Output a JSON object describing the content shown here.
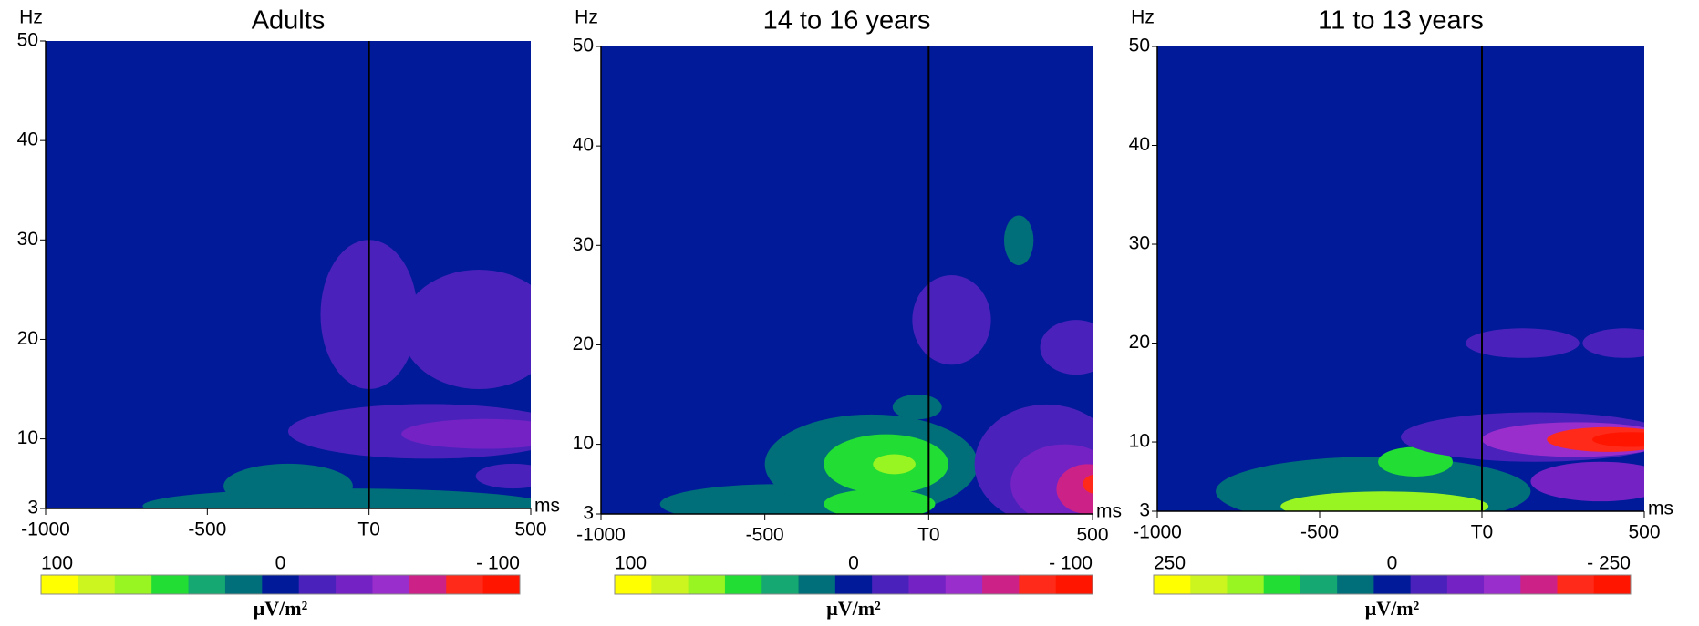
{
  "chart_data": [
    {
      "type": "contour",
      "title": "Adults",
      "y_label": "Hz",
      "x_label": "ms",
      "xlim": [
        -1000,
        500
      ],
      "xticks": [
        -1000,
        -500,
        {
          "value": 0,
          "label": "T0"
        },
        500
      ],
      "ylim": [
        3,
        50
      ],
      "yticks": [
        3,
        10,
        20,
        30,
        40,
        50
      ],
      "colorbar": {
        "label": "μV/m²",
        "ticks": [
          100,
          0,
          {
            "value": -100,
            "label": "- 100"
          }
        ],
        "colors": [
          "#ffff00",
          "#ccf520",
          "#99f522",
          "#22dd33",
          "#16a872",
          "#006f7a",
          "#001a99",
          "#4a22bb",
          "#7422c4",
          "#9a2ecc",
          "#cc2288",
          "#ff2a1a",
          "#ff1500"
        ]
      },
      "regions": [
        {
          "value": 20,
          "t": [
            -700,
            560
          ],
          "f": [
            1.5,
            5
          ]
        },
        {
          "value": 20,
          "t": [
            -450,
            -50
          ],
          "f": [
            3,
            7.5
          ]
        },
        {
          "value": -20,
          "t": [
            -150,
            150
          ],
          "f": [
            15,
            30
          ]
        },
        {
          "value": -20,
          "t": [
            100,
            580
          ],
          "f": [
            15,
            27
          ]
        },
        {
          "value": -20,
          "t": [
            -250,
            620
          ],
          "f": [
            8,
            13.5
          ]
        },
        {
          "value": -35,
          "t": [
            100,
            620
          ],
          "f": [
            9,
            12
          ]
        },
        {
          "value": -20,
          "t": [
            330,
            560
          ],
          "f": [
            5,
            7.5
          ]
        }
      ]
    },
    {
      "type": "contour",
      "title": "14 to 16 years",
      "y_label": "Hz",
      "x_label": "ms",
      "xlim": [
        -1000,
        500
      ],
      "xticks": [
        -1000,
        -500,
        {
          "value": 0,
          "label": "T0"
        },
        500
      ],
      "ylim": [
        3,
        50
      ],
      "yticks": [
        3,
        10,
        20,
        30,
        40,
        50
      ],
      "colorbar": {
        "label": "μV/m²",
        "ticks": [
          100,
          0,
          {
            "value": -100,
            "label": "- 100"
          }
        ],
        "colors": [
          "#ffff00",
          "#ccf520",
          "#99f522",
          "#22dd33",
          "#16a872",
          "#006f7a",
          "#001a99",
          "#4a22bb",
          "#7422c4",
          "#9a2ecc",
          "#cc2288",
          "#ff2a1a",
          "#ff1500"
        ]
      },
      "regions": [
        {
          "value": 20,
          "t": [
            -820,
            -80
          ],
          "f": [
            2,
            6
          ]
        },
        {
          "value": 20,
          "t": [
            -500,
            150
          ],
          "f": [
            3,
            13
          ]
        },
        {
          "value": 40,
          "t": [
            -320,
            60
          ],
          "f": [
            5,
            11
          ]
        },
        {
          "value": 40,
          "t": [
            -320,
            20
          ],
          "f": [
            2.5,
            5.5
          ]
        },
        {
          "value": 55,
          "t": [
            -170,
            -40
          ],
          "f": [
            7,
            9
          ]
        },
        {
          "value": 20,
          "t": [
            -110,
            40
          ],
          "f": [
            12.5,
            15
          ]
        },
        {
          "value": 20,
          "t": [
            230,
            320
          ],
          "f": [
            28,
            33
          ]
        },
        {
          "value": -20,
          "t": [
            -50,
            190
          ],
          "f": [
            18,
            27
          ]
        },
        {
          "value": -20,
          "t": [
            340,
            560
          ],
          "f": [
            17,
            22.5
          ]
        },
        {
          "value": -20,
          "t": [
            140,
            580
          ],
          "f": [
            2,
            14
          ]
        },
        {
          "value": -35,
          "t": [
            250,
            580
          ],
          "f": [
            2,
            10
          ]
        },
        {
          "value": -60,
          "t": [
            390,
            580
          ],
          "f": [
            3,
            8
          ]
        },
        {
          "value": -75,
          "t": [
            470,
            560
          ],
          "f": [
            5,
            7
          ]
        }
      ]
    },
    {
      "type": "contour",
      "title": "11 to 13 years",
      "y_label": "Hz",
      "x_label": "ms",
      "xlim": [
        -1000,
        500
      ],
      "xticks": [
        -1000,
        -500,
        {
          "value": 0,
          "label": "T0"
        },
        500
      ],
      "ylim": [
        3,
        50
      ],
      "yticks": [
        3,
        10,
        20,
        30,
        40,
        50
      ],
      "colorbar": {
        "label": "μV/m²",
        "ticks": [
          250,
          0,
          {
            "value": -250,
            "label": "- 250"
          }
        ],
        "colors": [
          "#ffff00",
          "#ccf520",
          "#99f522",
          "#22dd33",
          "#16a872",
          "#006f7a",
          "#001a99",
          "#4a22bb",
          "#7422c4",
          "#9a2ecc",
          "#cc2288",
          "#ff2a1a",
          "#ff1500"
        ]
      },
      "regions": [
        {
          "value": 50,
          "t": [
            -820,
            150
          ],
          "f": [
            1.5,
            8.5
          ]
        },
        {
          "value": 100,
          "t": [
            -320,
            -90
          ],
          "f": [
            6.5,
            9.5
          ]
        },
        {
          "value": 140,
          "t": [
            -620,
            20
          ],
          "f": [
            2,
            5
          ]
        },
        {
          "value": -50,
          "t": [
            -250,
            580
          ],
          "f": [
            8,
            13
          ]
        },
        {
          "value": -100,
          "t": [
            0,
            580
          ],
          "f": [
            8.5,
            12
          ]
        },
        {
          "value": -180,
          "t": [
            200,
            580
          ],
          "f": [
            9,
            11.5
          ]
        },
        {
          "value": -230,
          "t": [
            340,
            580
          ],
          "f": [
            9.5,
            11
          ]
        },
        {
          "value": -60,
          "t": [
            150,
            580
          ],
          "f": [
            4,
            8
          ]
        },
        {
          "value": -20,
          "t": [
            -50,
            300
          ],
          "f": [
            18.5,
            21.5
          ]
        },
        {
          "value": -20,
          "t": [
            310,
            570
          ],
          "f": [
            18.5,
            21.5
          ]
        }
      ]
    }
  ]
}
